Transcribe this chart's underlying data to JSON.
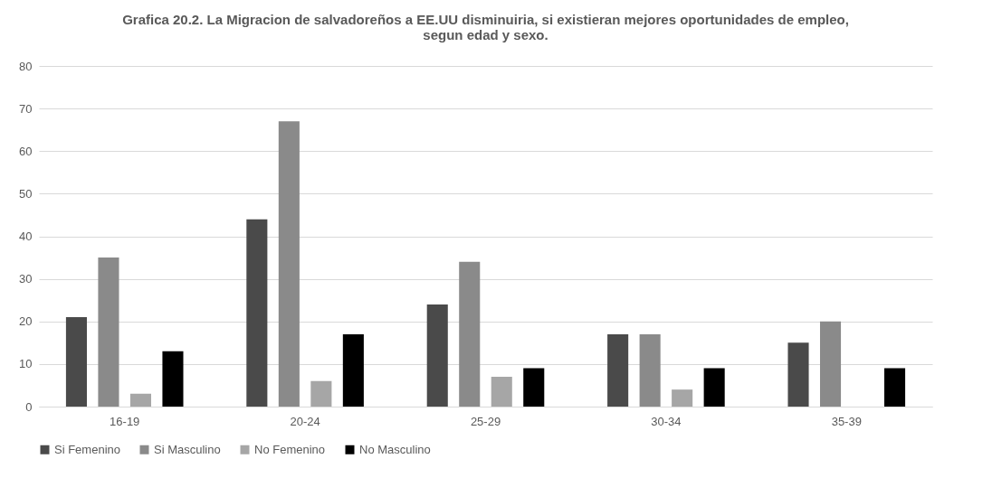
{
  "chart_data": {
    "type": "bar",
    "title": [
      "Grafica 20.2. La Migracion de salvadoreños a EE.UU disminuiria, si existieran mejores oportunidades de empleo,",
      "segun edad y sexo."
    ],
    "categories": [
      "16-19",
      "20-24",
      "25-29",
      "30-34",
      "35-39"
    ],
    "series": [
      {
        "name": "Si Femenino",
        "color": "#4a4a4a",
        "values": [
          21,
          44,
          24,
          17,
          15
        ]
      },
      {
        "name": "Si Masculino",
        "color": "#8a8a8a",
        "values": [
          35,
          67,
          34,
          17,
          20
        ]
      },
      {
        "name": "No Femenino",
        "color": "#a6a6a6",
        "values": [
          3,
          6,
          7,
          4,
          0
        ]
      },
      {
        "name": "No Masculino",
        "color": "#000000",
        "values": [
          13,
          17,
          9,
          9,
          9
        ]
      }
    ],
    "ylim": [
      0,
      80
    ],
    "yticks": [
      0,
      10,
      20,
      30,
      40,
      50,
      60,
      70,
      80
    ],
    "grid": "y",
    "legend": "bottom"
  }
}
